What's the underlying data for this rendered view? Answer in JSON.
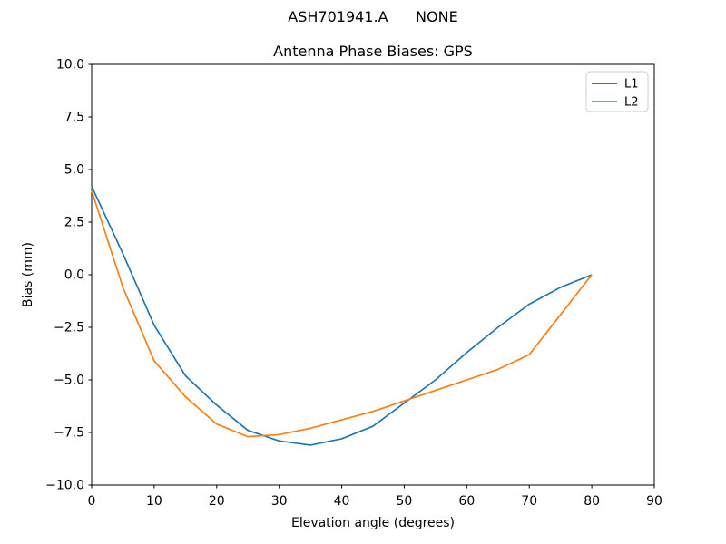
{
  "figure": {
    "suptitle": "ASH701941.A      NONE"
  },
  "chart_data": {
    "type": "line",
    "title": "Antenna Phase Biases: GPS",
    "xlabel": "Elevation angle (degrees)",
    "ylabel": "Bias (mm)",
    "xlim": [
      0,
      90
    ],
    "ylim": [
      -10,
      10
    ],
    "grid": false,
    "legend_position": "upper right",
    "xticks": [
      {
        "value": 0,
        "label": "0"
      },
      {
        "value": 10,
        "label": "10"
      },
      {
        "value": 20,
        "label": "20"
      },
      {
        "value": 30,
        "label": "30"
      },
      {
        "value": 40,
        "label": "40"
      },
      {
        "value": 50,
        "label": "50"
      },
      {
        "value": 60,
        "label": "60"
      },
      {
        "value": 70,
        "label": "70"
      },
      {
        "value": 80,
        "label": "80"
      },
      {
        "value": 90,
        "label": "90"
      }
    ],
    "yticks": [
      {
        "value": 10,
        "label": "10.0"
      },
      {
        "value": 7.5,
        "label": "7.5"
      },
      {
        "value": 5,
        "label": "5.0"
      },
      {
        "value": 2.5,
        "label": "2.5"
      },
      {
        "value": 0,
        "label": "0.0"
      },
      {
        "value": -2.5,
        "label": "−2.5"
      },
      {
        "value": -5,
        "label": "−5.0"
      },
      {
        "value": -7.5,
        "label": "−7.5"
      },
      {
        "value": -10,
        "label": "−10.0"
      }
    ],
    "x": [
      0,
      5,
      10,
      15,
      20,
      25,
      30,
      35,
      40,
      45,
      50,
      55,
      60,
      65,
      70,
      75,
      80
    ],
    "series": [
      {
        "name": "L1",
        "color": "#1f77b4",
        "values": [
          4.2,
          1.0,
          -2.4,
          -4.8,
          -6.2,
          -7.4,
          -7.9,
          -8.1,
          -7.8,
          -7.2,
          -6.1,
          -5.0,
          -3.7,
          -2.5,
          -1.4,
          -0.6,
          0.0
        ]
      },
      {
        "name": "L2",
        "color": "#ff7f0e",
        "values": [
          4.0,
          -0.6,
          -4.1,
          -5.8,
          -7.1,
          -7.7,
          -7.6,
          -7.3,
          -6.9,
          -6.5,
          -6.0,
          -5.5,
          -5.0,
          -4.5,
          -3.8,
          -1.9,
          0.0
        ]
      }
    ]
  }
}
